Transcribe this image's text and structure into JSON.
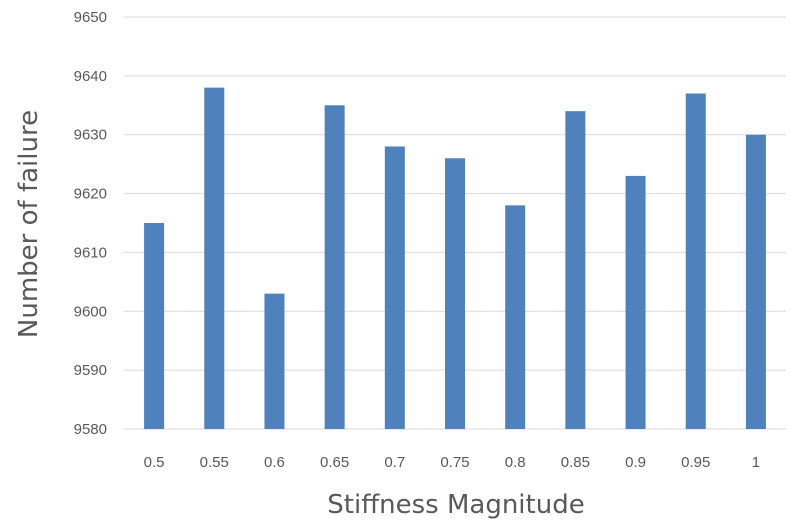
{
  "chart_data": {
    "type": "bar",
    "title": "",
    "xlabel": "Stiffness Magnitude",
    "ylabel": "Number of failure",
    "categories": [
      "0.5",
      "0.55",
      "0.6",
      "0.65",
      "0.7",
      "0.75",
      "0.8",
      "0.85",
      "0.9",
      "0.95",
      "1"
    ],
    "values": [
      9615,
      9638,
      9603,
      9635,
      9628,
      9626,
      9618,
      9634,
      9623,
      9637,
      9630
    ],
    "ylim": [
      9580,
      9650
    ],
    "yticks": [
      "9580",
      "9590",
      "9600",
      "9610",
      "9620",
      "9630",
      "9640",
      "9650"
    ],
    "grid": "horizontal",
    "legend": "none",
    "bar_color": "#4f81bd",
    "grid_color": "#d9d9d9",
    "text_color": "#595959"
  }
}
